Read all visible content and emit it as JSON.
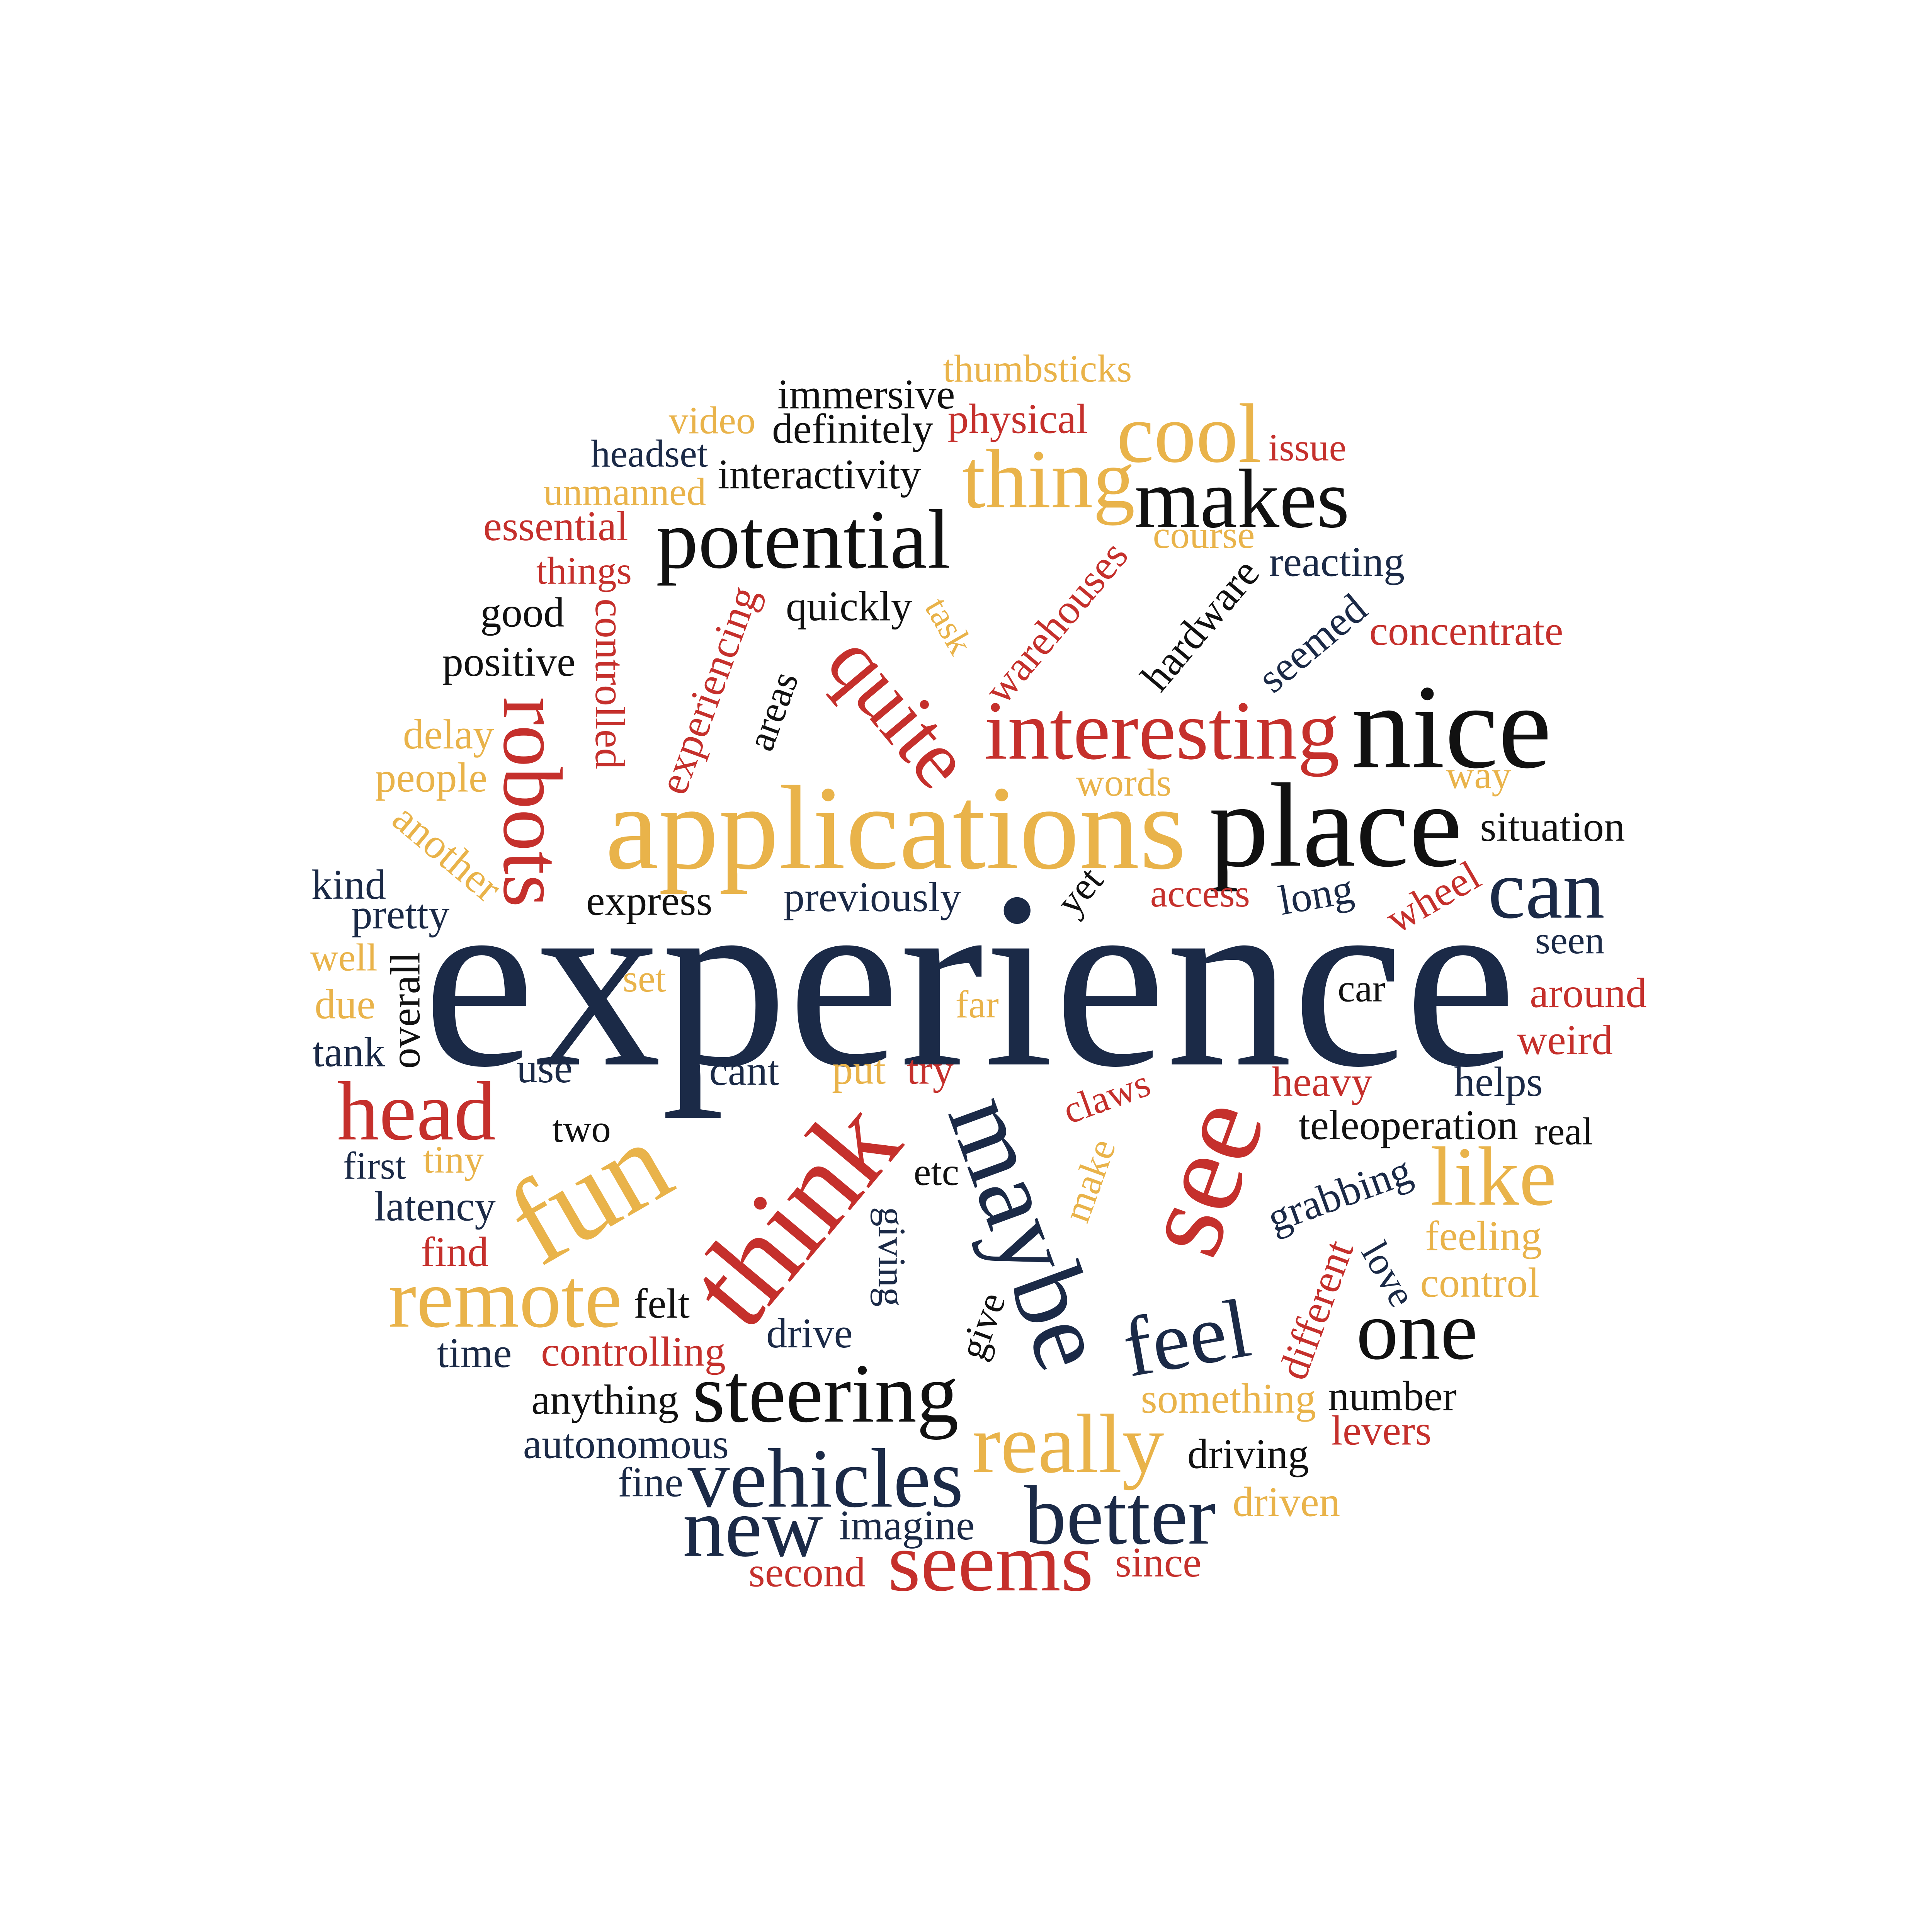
{
  "words": [
    {
      "text": "thumbsticks",
      "color": "#e9b34a"
    },
    {
      "text": "immersive",
      "color": "#111111"
    },
    {
      "text": "video",
      "color": "#e9b34a"
    },
    {
      "text": "definitely",
      "color": "#111111"
    },
    {
      "text": "physical",
      "color": "#c5302c"
    },
    {
      "text": "issue",
      "color": "#c5302c"
    },
    {
      "text": "cool",
      "color": "#e9b34a"
    },
    {
      "text": "headset",
      "color": "#1b2a47"
    },
    {
      "text": "interactivity",
      "color": "#111111"
    },
    {
      "text": "thing",
      "color": "#e9b34a"
    },
    {
      "text": "makes",
      "color": "#111111"
    },
    {
      "text": "unmanned",
      "color": "#e9b34a"
    },
    {
      "text": "essential",
      "color": "#c5302c"
    },
    {
      "text": "potential",
      "color": "#111111"
    },
    {
      "text": "course",
      "color": "#e9b34a"
    },
    {
      "text": "things",
      "color": "#c5302c"
    },
    {
      "text": "reacting",
      "color": "#1b2a47"
    },
    {
      "text": "good",
      "color": "#111111"
    },
    {
      "text": "quickly",
      "color": "#111111"
    },
    {
      "text": "task",
      "color": "#e9b34a"
    },
    {
      "text": "warehouses",
      "color": "#c5302c"
    },
    {
      "text": "hardware",
      "color": "#111111"
    },
    {
      "text": "seemed",
      "color": "#1b2a47"
    },
    {
      "text": "concentrate",
      "color": "#c5302c"
    },
    {
      "text": "positive",
      "color": "#111111"
    },
    {
      "text": "controlled",
      "color": "#c5302c"
    },
    {
      "text": "experiencing",
      "color": "#c5302c"
    },
    {
      "text": "areas",
      "color": "#111111"
    },
    {
      "text": "quite",
      "color": "#c5302c"
    },
    {
      "text": "robots",
      "color": "#c5302c"
    },
    {
      "text": "interesting",
      "color": "#c5302c"
    },
    {
      "text": "nice",
      "color": "#111111"
    },
    {
      "text": "delay",
      "color": "#e9b34a"
    },
    {
      "text": "people",
      "color": "#e9b34a"
    },
    {
      "text": "words",
      "color": "#e9b34a"
    },
    {
      "text": "way",
      "color": "#e9b34a"
    },
    {
      "text": "applications",
      "color": "#e9b34a"
    },
    {
      "text": "place",
      "color": "#111111"
    },
    {
      "text": "another",
      "color": "#e9b34a"
    },
    {
      "text": "situation",
      "color": "#111111"
    },
    {
      "text": "kind",
      "color": "#1b2a47"
    },
    {
      "text": "express",
      "color": "#111111"
    },
    {
      "text": "previously",
      "color": "#1b2a47"
    },
    {
      "text": "yet",
      "color": "#111111"
    },
    {
      "text": "access",
      "color": "#c5302c"
    },
    {
      "text": "long",
      "color": "#1b2a47"
    },
    {
      "text": "wheel",
      "color": "#c5302c"
    },
    {
      "text": "can",
      "color": "#1b2a47"
    },
    {
      "text": "pretty",
      "color": "#1b2a47"
    },
    {
      "text": "experience",
      "color": "#1b2a47"
    },
    {
      "text": "well",
      "color": "#e9b34a"
    },
    {
      "text": "seen",
      "color": "#1b2a47"
    },
    {
      "text": "overall",
      "color": "#111111"
    },
    {
      "text": "set",
      "color": "#e9b34a"
    },
    {
      "text": "car",
      "color": "#111111"
    },
    {
      "text": "around",
      "color": "#c5302c"
    },
    {
      "text": "due",
      "color": "#e9b34a"
    },
    {
      "text": "far",
      "color": "#e9b34a"
    },
    {
      "text": "weird",
      "color": "#c5302c"
    },
    {
      "text": "tank",
      "color": "#1b2a47"
    },
    {
      "text": "use",
      "color": "#1b2a47"
    },
    {
      "text": "cant",
      "color": "#1b2a47"
    },
    {
      "text": "put",
      "color": "#e9b34a"
    },
    {
      "text": "try",
      "color": "#c5302c"
    },
    {
      "text": "maybe",
      "color": "#1b2a47"
    },
    {
      "text": "heavy",
      "color": "#c5302c"
    },
    {
      "text": "helps",
      "color": "#1b2a47"
    },
    {
      "text": "claws",
      "color": "#c5302c"
    },
    {
      "text": "see",
      "color": "#c5302c"
    },
    {
      "text": "head",
      "color": "#c5302c"
    },
    {
      "text": "two",
      "color": "#111111"
    },
    {
      "text": "teleoperation",
      "color": "#111111"
    },
    {
      "text": "real",
      "color": "#111111"
    },
    {
      "text": "fun",
      "color": "#e9b34a"
    },
    {
      "text": "think",
      "color": "#c5302c"
    },
    {
      "text": "first",
      "color": "#1b2a47"
    },
    {
      "text": "tiny",
      "color": "#e9b34a"
    },
    {
      "text": "etc",
      "color": "#111111"
    },
    {
      "text": "make",
      "color": "#e9b34a"
    },
    {
      "text": "like",
      "color": "#e9b34a"
    },
    {
      "text": "grabbing",
      "color": "#1b2a47"
    },
    {
      "text": "latency",
      "color": "#1b2a47"
    },
    {
      "text": "giving",
      "color": "#1b2a47"
    },
    {
      "text": "feeling",
      "color": "#e9b34a"
    },
    {
      "text": "find",
      "color": "#c5302c"
    },
    {
      "text": "different",
      "color": "#c5302c"
    },
    {
      "text": "love",
      "color": "#1b2a47"
    },
    {
      "text": "control",
      "color": "#e9b34a"
    },
    {
      "text": "remote",
      "color": "#e9b34a"
    },
    {
      "text": "felt",
      "color": "#111111"
    },
    {
      "text": "give",
      "color": "#111111"
    },
    {
      "text": "feel",
      "color": "#1b2a47"
    },
    {
      "text": "one",
      "color": "#111111"
    },
    {
      "text": "drive",
      "color": "#1b2a47"
    },
    {
      "text": "time",
      "color": "#1b2a47"
    },
    {
      "text": "controlling",
      "color": "#c5302c"
    },
    {
      "text": "steering",
      "color": "#111111"
    },
    {
      "text": "anything",
      "color": "#111111"
    },
    {
      "text": "something",
      "color": "#e9b34a"
    },
    {
      "text": "number",
      "color": "#111111"
    },
    {
      "text": "really",
      "color": "#e9b34a"
    },
    {
      "text": "levers",
      "color": "#c5302c"
    },
    {
      "text": "autonomous",
      "color": "#1b2a47"
    },
    {
      "text": "driving",
      "color": "#111111"
    },
    {
      "text": "vehicles",
      "color": "#1b2a47"
    },
    {
      "text": "fine",
      "color": "#1b2a47"
    },
    {
      "text": "better",
      "color": "#1b2a47"
    },
    {
      "text": "driven",
      "color": "#e9b34a"
    },
    {
      "text": "new",
      "color": "#1b2a47"
    },
    {
      "text": "imagine",
      "color": "#1b2a47"
    },
    {
      "text": "seems",
      "color": "#c5302c"
    },
    {
      "text": "second",
      "color": "#c5302c"
    },
    {
      "text": "since",
      "color": "#c5302c"
    }
  ]
}
